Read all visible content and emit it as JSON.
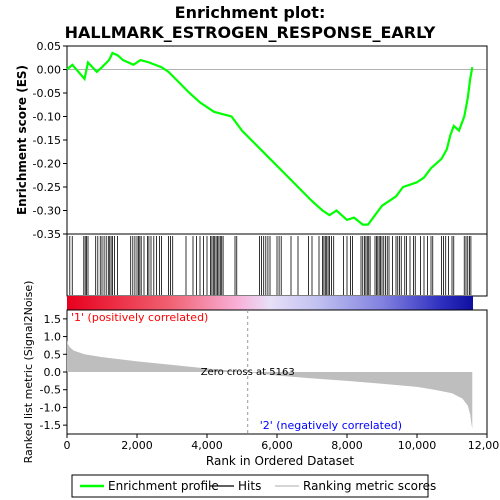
{
  "chart_data": {
    "type": "line",
    "title": "Enrichment plot: HALLMARK_ESTROGEN_RESPONSE_EARLY",
    "upper_panel": {
      "ylabel": "Enrichment score (ES)",
      "ylim": [
        -0.35,
        0.05
      ],
      "yticks": [
        "0.05",
        "0.00",
        "-0.05",
        "-0.10",
        "-0.15",
        "-0.20",
        "-0.25",
        "-0.30",
        "-0.35"
      ],
      "ytick_values": [
        0.05,
        0.0,
        -0.05,
        -0.1,
        -0.15,
        -0.2,
        -0.25,
        -0.3,
        -0.35
      ],
      "series": [
        {
          "name": "Enrichment profile",
          "color": "#00ff00",
          "x": [
            0,
            150,
            500,
            600,
            850,
            1000,
            1200,
            1300,
            1450,
            1600,
            1900,
            2100,
            2350,
            2700,
            2900,
            3100,
            3500,
            3800,
            4200,
            4700,
            5000,
            5400,
            5800,
            6200,
            6600,
            7000,
            7300,
            7500,
            7700,
            8000,
            8200,
            8450,
            8600,
            8800,
            9000,
            9200,
            9400,
            9600,
            9800,
            10000,
            10200,
            10400,
            10700,
            10850,
            10950,
            11050,
            11200,
            11350,
            11450,
            11520,
            11580
          ],
          "y": [
            0.0,
            0.01,
            -0.02,
            0.015,
            -0.005,
            0.005,
            0.02,
            0.035,
            0.03,
            0.02,
            0.01,
            0.02,
            0.015,
            0.005,
            -0.005,
            -0.02,
            -0.05,
            -0.07,
            -0.09,
            -0.1,
            -0.13,
            -0.16,
            -0.19,
            -0.22,
            -0.25,
            -0.28,
            -0.3,
            -0.31,
            -0.3,
            -0.32,
            -0.315,
            -0.33,
            -0.33,
            -0.31,
            -0.29,
            -0.28,
            -0.27,
            -0.25,
            -0.245,
            -0.24,
            -0.23,
            -0.21,
            -0.19,
            -0.17,
            -0.14,
            -0.12,
            -0.13,
            -0.1,
            -0.06,
            -0.02,
            0.005
          ]
        }
      ],
      "hits": [
        80,
        150,
        480,
        520,
        560,
        600,
        820,
        880,
        950,
        1000,
        1060,
        1120,
        1180,
        1220,
        1260,
        1300,
        1360,
        1440,
        1820,
        1880,
        1940,
        2000,
        2040,
        2080,
        2120,
        2200,
        2300,
        2340,
        2400,
        2480,
        2560,
        2640,
        2700,
        2900,
        2960,
        3020,
        3400,
        3600,
        3700,
        3800,
        3900,
        4000,
        4100,
        4140,
        4180,
        4220,
        4260,
        4300,
        4340,
        4380,
        4420,
        4460,
        4800,
        4850,
        5500,
        5560,
        5620,
        5680,
        5740,
        5800,
        6000,
        6060,
        6120,
        6400,
        6600,
        6900,
        7000,
        7200,
        7300,
        7340,
        7380,
        7420,
        7460,
        7500,
        7560,
        7620,
        7900,
        8000,
        8100,
        8160,
        8400,
        8450,
        8500,
        8540,
        8580,
        8620,
        8660,
        8800,
        8840,
        8880,
        8920,
        8960,
        9000,
        9050,
        9100,
        9150,
        9200,
        9300,
        9400,
        9450,
        9500,
        9550,
        9650,
        9700,
        9800,
        9900,
        9950,
        10100,
        10200,
        10300,
        10400,
        10450,
        10700,
        10760,
        10820,
        10900,
        11000,
        11050,
        11350,
        11400,
        11450,
        11500,
        11540
      ]
    },
    "lower_panel": {
      "ylabel": "Ranked list metric (Signal2Noise)",
      "ylim": [
        -1.75,
        1.75
      ],
      "yticks": [
        "1.5",
        "1.0",
        "0.5",
        "0.0",
        "-0.5",
        "-1.0",
        "-1.5"
      ],
      "ytick_values": [
        1.5,
        1.0,
        0.5,
        0.0,
        -0.5,
        -1.0,
        -1.5
      ],
      "profile_x": [
        0,
        20,
        80,
        200,
        500,
        1000,
        2000,
        3000,
        4000,
        5163,
        6000,
        7000,
        8000,
        9000,
        10000,
        10500,
        11000,
        11300,
        11450,
        11520,
        11560,
        11580
      ],
      "profile_y": [
        0.9,
        0.8,
        0.7,
        0.6,
        0.5,
        0.42,
        0.3,
        0.2,
        0.1,
        0.0,
        -0.1,
        -0.18,
        -0.25,
        -0.33,
        -0.42,
        -0.5,
        -0.6,
        -0.75,
        -0.95,
        -1.2,
        -1.5,
        -1.6
      ],
      "zero_cross_label": "Zero cross at 5163",
      "zero_cross_x": 5163,
      "pos_label": "'1' (positively correlated)",
      "neg_label": "'2' (negatively correlated)"
    },
    "xlabel": "Rank in Ordered Dataset",
    "xlim": [
      0,
      12000
    ],
    "xticks": [
      "0",
      "2,000",
      "4,000",
      "6,000",
      "8,000",
      "10,000",
      "12,000"
    ],
    "xtick_values": [
      0,
      2000,
      4000,
      6000,
      8000,
      10000,
      12000
    ],
    "n_genes": 11580,
    "legend": {
      "placement": "bottom",
      "items": [
        {
          "label": "Enrichment profile",
          "color": "#00ff00"
        },
        {
          "label": "Hits",
          "color": "#000000"
        },
        {
          "label": "Ranking metric scores",
          "color": "#bebebe"
        }
      ]
    },
    "colors": {
      "profile": "#00ff00",
      "pos_text": "#ff0000",
      "neg_text": "#0000ff",
      "metric_fill": "#bebebe"
    }
  }
}
